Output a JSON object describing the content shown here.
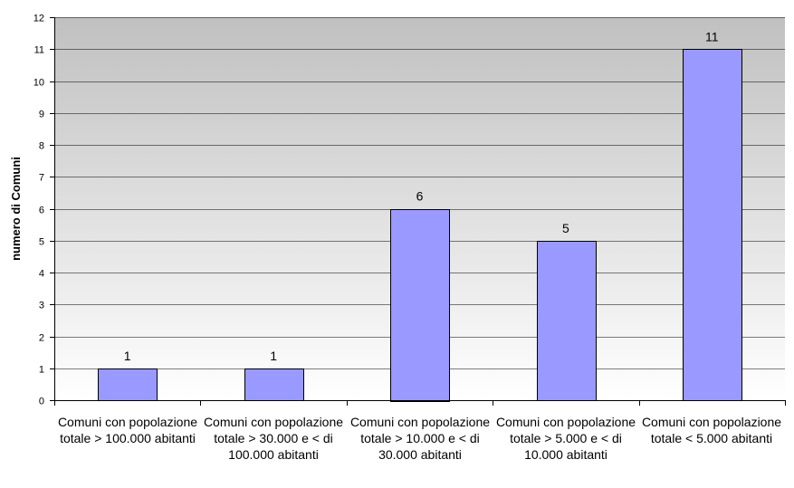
{
  "chart_data": {
    "type": "bar",
    "title": "",
    "xlabel": "",
    "ylabel": "numero di Comuni",
    "ylim": [
      0,
      12
    ],
    "yticks": [
      "0",
      "1",
      "2",
      "3",
      "4",
      "5",
      "6",
      "7",
      "8",
      "9",
      "10",
      "11",
      "12"
    ],
    "grid": "horizontal",
    "legend": "none",
    "bar_color": "#9999ff",
    "bar_border_color": "#000000",
    "plot_background": "gradient #c0c0c0 to #ffffff",
    "categories": [
      "Comuni con popolazione totale > 100.000 abitanti",
      "Comuni con popolazione totale > 30.000 e < di 100.000 abitanti",
      "Comuni con popolazione totale > 10.000 e < di 30.000 abitanti",
      "Comuni con popolazione totale > 5.000 e < di 10.000 abitanti",
      "Comuni con popolazione totale < 5.000 abitanti"
    ],
    "values": [
      1,
      1,
      6,
      5,
      11
    ],
    "data_labels": [
      "1",
      "1",
      "6",
      "5",
      "11"
    ]
  }
}
